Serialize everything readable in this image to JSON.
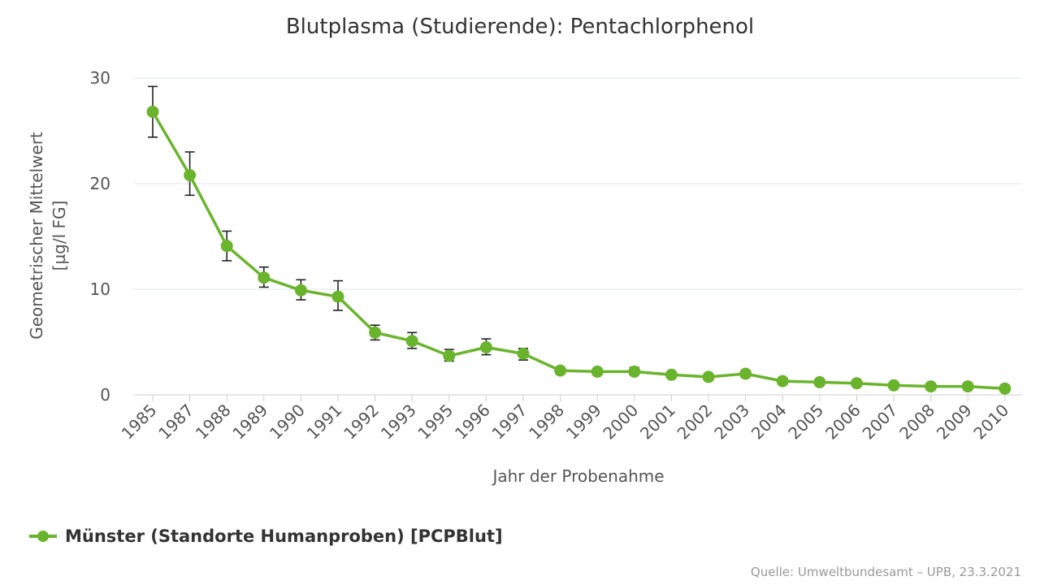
{
  "chart_data": {
    "type": "line",
    "title": "Blutplasma (Studierende): Pentachlorphenol",
    "xlabel": "Jahr der Probenahme",
    "ylabel_line1": "Geometrischer Mittelwert",
    "ylabel_line2": "[µg/l FG]",
    "ylim": [
      0,
      30
    ],
    "yticks": [
      "0",
      "10",
      "20",
      "30"
    ],
    "grid": true,
    "legend_position": "bottom-left",
    "categories": [
      "1985",
      "1987",
      "1988",
      "1989",
      "1990",
      "1991",
      "1992",
      "1993",
      "1995",
      "1996",
      "1997",
      "1998",
      "1999",
      "2000",
      "2001",
      "2002",
      "2003",
      "2004",
      "2005",
      "2006",
      "2007",
      "2008",
      "2009",
      "2010"
    ],
    "series": [
      {
        "name": "Münster (Standorte Humanproben) [PCPBlut]",
        "color": "#6ab42d",
        "values": [
          26.8,
          20.8,
          14.1,
          11.1,
          9.9,
          9.3,
          5.9,
          5.1,
          3.7,
          4.5,
          3.9,
          2.3,
          2.2,
          2.2,
          1.9,
          1.7,
          2.0,
          1.3,
          1.2,
          1.1,
          0.9,
          0.8,
          0.8,
          0.6
        ],
        "error_low": [
          24.4,
          18.9,
          12.7,
          10.2,
          9.0,
          8.0,
          5.2,
          4.4,
          3.2,
          3.8,
          3.3,
          2.0,
          1.9,
          1.9,
          1.6,
          1.4,
          1.7,
          1.1,
          1.0,
          0.9,
          0.8,
          0.7,
          0.7,
          0.5
        ],
        "error_high": [
          29.2,
          23.0,
          15.5,
          12.1,
          10.9,
          10.8,
          6.6,
          5.9,
          4.3,
          5.3,
          4.4,
          2.6,
          2.5,
          2.6,
          2.2,
          2.0,
          2.3,
          1.5,
          1.4,
          1.3,
          1.1,
          0.9,
          0.9,
          0.7
        ]
      }
    ],
    "source": "Quelle: Umweltbundesamt – UPB, 23.3.2021"
  }
}
